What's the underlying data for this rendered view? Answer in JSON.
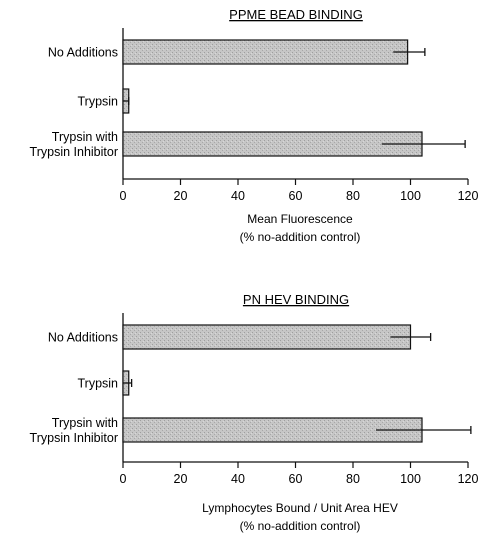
{
  "chart_data": [
    {
      "type": "bar",
      "orientation": "horizontal",
      "title": "PPME BEAD BINDING",
      "categories": [
        [
          "No Additions"
        ],
        [
          "Trypsin"
        ],
        [
          "Trypsin with",
          "Trypsin Inhibitor"
        ]
      ],
      "values": [
        99,
        2,
        104
      ],
      "errors": [
        [
          94,
          105
        ],
        [
          0,
          2
        ],
        [
          90,
          119
        ]
      ],
      "xlabel": [
        "Mean Fluorescence",
        "(% no-addition control)"
      ],
      "xlim": [
        0,
        120
      ],
      "xticks": [
        0,
        20,
        40,
        60,
        80,
        100,
        120
      ],
      "grid": false,
      "bar_color": "#c4c4c4"
    },
    {
      "type": "bar",
      "orientation": "horizontal",
      "title": "PN HEV BINDING",
      "categories": [
        [
          "No Additions"
        ],
        [
          "Trypsin"
        ],
        [
          "Trypsin with",
          "Trypsin Inhibitor"
        ]
      ],
      "values": [
        100,
        2,
        104
      ],
      "errors": [
        [
          93,
          107
        ],
        [
          0,
          3
        ],
        [
          88,
          121
        ]
      ],
      "xlabel": [
        "Lymphocytes Bound / Unit Area HEV",
        "(% no-addition control)"
      ],
      "xlim": [
        0,
        120
      ],
      "xticks": [
        0,
        20,
        40,
        60,
        80,
        100,
        120
      ],
      "grid": false,
      "bar_color": "#c4c4c4"
    }
  ]
}
